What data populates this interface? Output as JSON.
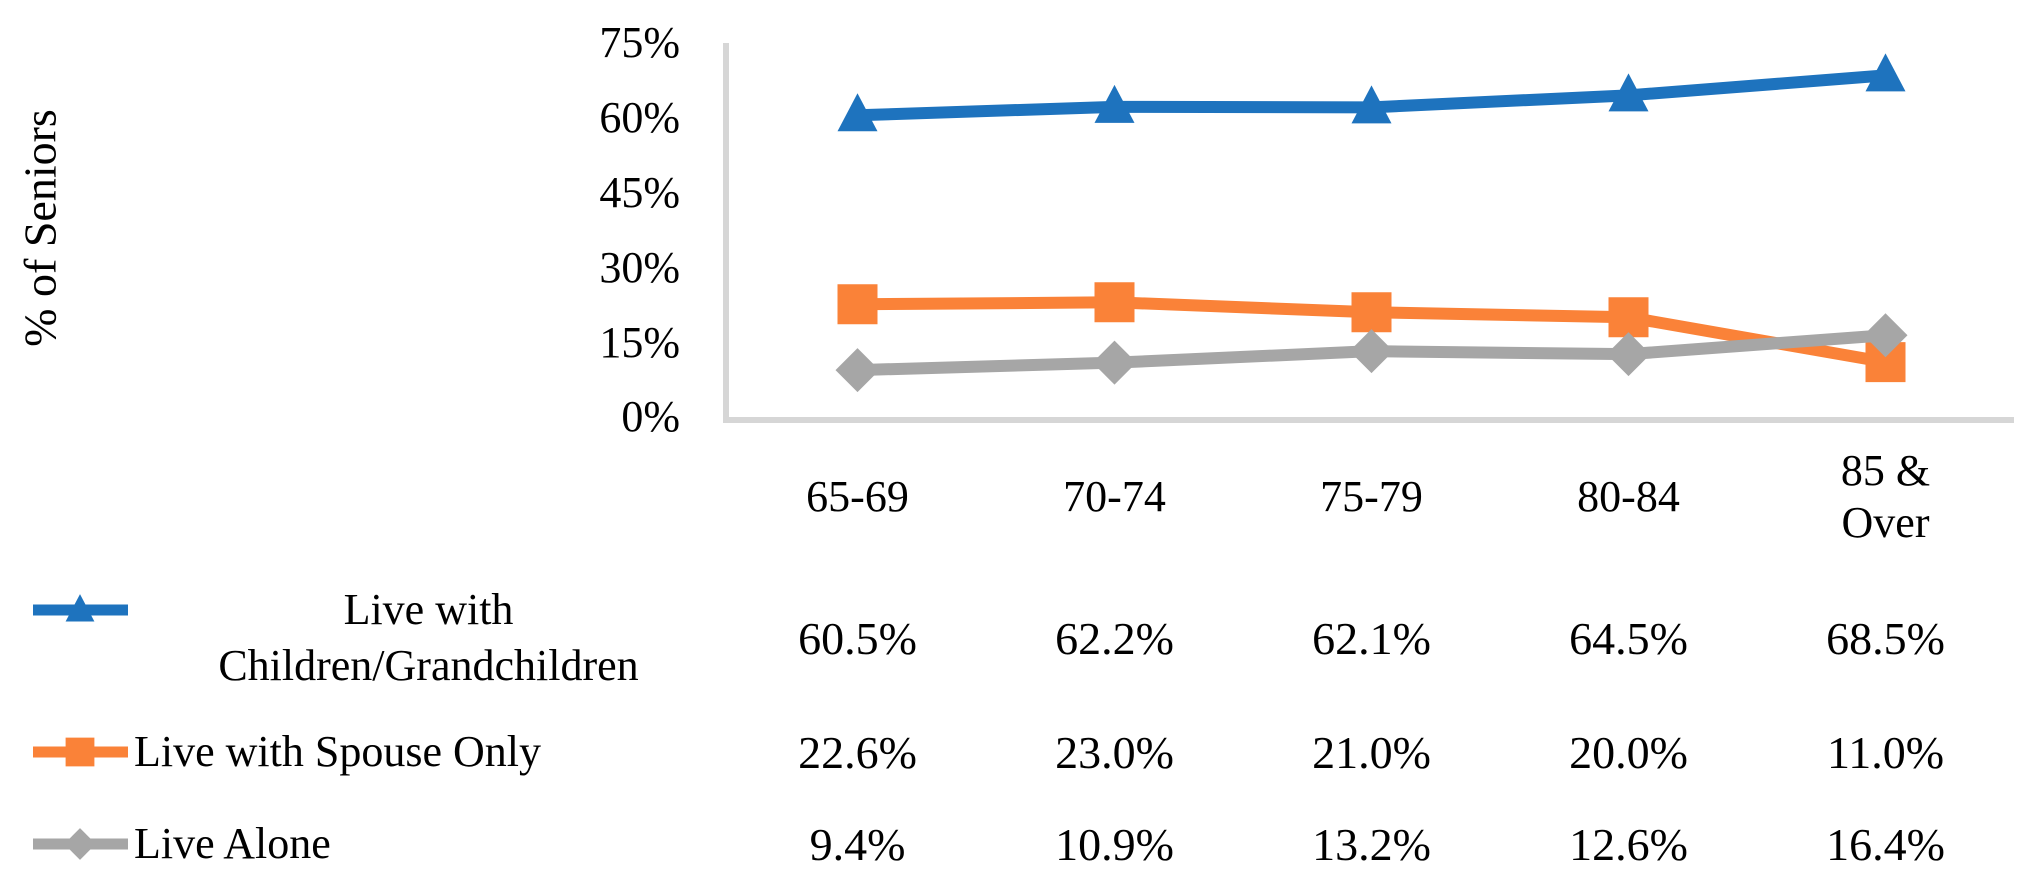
{
  "figure": {
    "background_color": "#ffffff",
    "axis_line_color": "#d6d6d6",
    "text_color": "#000000"
  },
  "chart_data": {
    "type": "line",
    "title": "",
    "xlabel": "",
    "ylabel": "% of Seniors",
    "ylim": [
      0,
      75
    ],
    "grid": "off",
    "legend_position": "bottom-left-with-value-table",
    "yticks": [
      "75%",
      "60%",
      "45%",
      "30%",
      "15%",
      "0%"
    ],
    "ytick_values": [
      75,
      60,
      45,
      30,
      15,
      0
    ],
    "categories": [
      "65-69",
      "70-74",
      "75-79",
      "80-84",
      "85 &\nOver"
    ],
    "series": [
      {
        "name": "Live with Children/Grandchildren",
        "legend_label": "Live with\nChildren/Grandchildren",
        "color": "#1e73be",
        "marker": "triangle",
        "values": [
          60.5,
          62.2,
          62.1,
          64.5,
          68.5
        ],
        "value_labels": [
          "60.5%",
          "62.2%",
          "62.1%",
          "64.5%",
          "68.5%"
        ]
      },
      {
        "name": "Live with Spouse Only",
        "legend_label": "Live with Spouse Only",
        "color": "#fa8238",
        "marker": "square",
        "values": [
          22.6,
          23.0,
          21.0,
          20.0,
          11.0
        ],
        "value_labels": [
          "22.6%",
          "23.0%",
          "21.0%",
          "20.0%",
          "11.0%"
        ]
      },
      {
        "name": "Live Alone",
        "legend_label": "Live Alone",
        "color": "#a6a6a6",
        "marker": "diamond",
        "values": [
          9.4,
          10.9,
          13.2,
          12.6,
          16.4
        ],
        "value_labels": [
          "9.4%",
          "10.9%",
          "13.2%",
          "12.6%",
          "16.4%"
        ]
      }
    ]
  }
}
